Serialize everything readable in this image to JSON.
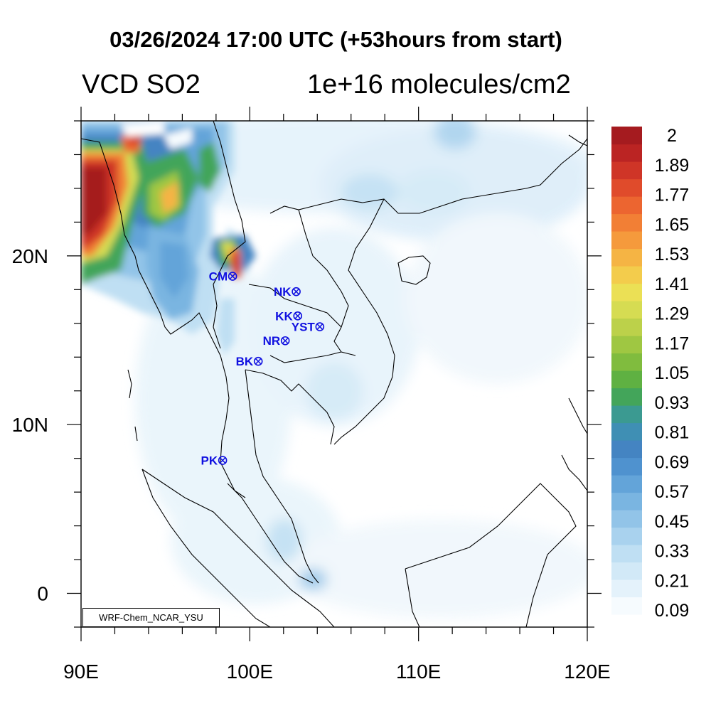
{
  "title": "03/26/2024 17:00 UTC (+53hours from start)",
  "variable_label": "VCD SO2",
  "units_label": "1e+16 molecules/cm2",
  "credit": "WRF-Chem_NCAR_YSU",
  "map": {
    "lon_range": [
      90,
      120
    ],
    "lat_range": [
      -2,
      28
    ],
    "x_tick_labels": [
      {
        "lon": 90,
        "label": "90E"
      },
      {
        "lon": 100,
        "label": "100E"
      },
      {
        "lon": 110,
        "label": "110E"
      },
      {
        "lon": 120,
        "label": "120E"
      }
    ],
    "y_tick_labels": [
      {
        "lat": 0,
        "label": "0"
      },
      {
        "lat": 10,
        "label": "10N"
      },
      {
        "lat": 20,
        "label": "20N"
      }
    ]
  },
  "colorbar": {
    "labels": [
      "2",
      "1.89",
      "1.77",
      "1.65",
      "1.53",
      "1.41",
      "1.29",
      "1.17",
      "1.05",
      "0.93",
      "0.81",
      "0.69",
      "0.57",
      "0.45",
      "0.33",
      "0.21",
      "0.09"
    ],
    "colors": [
      "#f6fbfe",
      "#e4f2fb",
      "#d2e9f7",
      "#bfdff3",
      "#a9d2ee",
      "#92c4e8",
      "#7ab5e1",
      "#63a4d9",
      "#4f92cf",
      "#4484c2",
      "#3f8fb4",
      "#3b9a91",
      "#43a55a",
      "#5fb142",
      "#80bc3e",
      "#9fc742",
      "#bcd14a",
      "#d6dc52",
      "#ebe055",
      "#f3cc4c",
      "#f5b444",
      "#f59a3c",
      "#f27f35",
      "#ec6530",
      "#e04b2b",
      "#cf3527",
      "#bb2423",
      "#a51b1f"
    ]
  },
  "stations": [
    {
      "code": "CM",
      "lon": 98.98,
      "lat": 18.79
    },
    {
      "code": "NK",
      "lon": 102.75,
      "lat": 17.88
    },
    {
      "code": "KK",
      "lon": 102.84,
      "lat": 16.44
    },
    {
      "code": "YST",
      "lon": 104.15,
      "lat": 15.8
    },
    {
      "code": "NR",
      "lon": 102.1,
      "lat": 14.97
    },
    {
      "code": "BK",
      "lon": 100.5,
      "lat": 13.75
    },
    {
      "code": "PK",
      "lon": 98.39,
      "lat": 7.88
    }
  ]
}
